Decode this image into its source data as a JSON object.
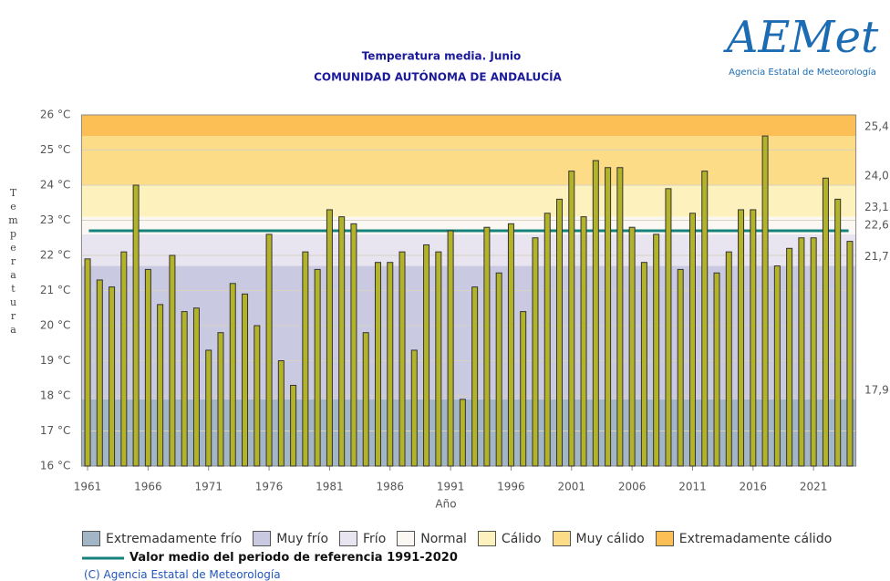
{
  "chart_data": {
    "type": "bar",
    "title": "Temperatura media. Junio",
    "subtitle": "COMUNIDAD AUTÓNOMA DE ANDALUCÍA",
    "x_label": "Año",
    "y_label": "Temperatura",
    "x": [
      1961,
      1962,
      1963,
      1964,
      1965,
      1966,
      1967,
      1968,
      1969,
      1970,
      1971,
      1972,
      1973,
      1974,
      1975,
      1976,
      1977,
      1978,
      1979,
      1980,
      1981,
      1982,
      1983,
      1984,
      1985,
      1986,
      1987,
      1988,
      1989,
      1990,
      1991,
      1992,
      1993,
      1994,
      1995,
      1996,
      1997,
      1998,
      1999,
      2000,
      2001,
      2002,
      2003,
      2004,
      2005,
      2006,
      2007,
      2008,
      2009,
      2010,
      2011,
      2012,
      2013,
      2014,
      2015,
      2016,
      2017,
      2018,
      2019,
      2020,
      2021,
      2022,
      2023,
      2024
    ],
    "values": [
      21.9,
      21.3,
      21.1,
      22.1,
      24.0,
      21.6,
      20.6,
      22.0,
      20.4,
      20.5,
      19.3,
      19.8,
      21.2,
      20.9,
      20.0,
      22.6,
      19.0,
      18.3,
      22.1,
      21.6,
      23.3,
      23.1,
      22.9,
      19.8,
      21.8,
      21.8,
      22.1,
      19.3,
      22.3,
      22.1,
      22.7,
      17.9,
      21.1,
      22.8,
      21.5,
      22.9,
      20.4,
      22.5,
      23.2,
      23.6,
      24.4,
      23.1,
      24.7,
      24.5,
      24.5,
      22.8,
      21.8,
      22.6,
      23.9,
      21.6,
      23.2,
      24.4,
      21.5,
      22.1,
      23.3,
      23.3,
      25.4,
      21.7,
      22.2,
      22.5,
      22.5,
      24.2,
      23.6,
      22.4
    ],
    "color": "#b3b32a",
    "xlim": [
      1960.5,
      2024.5
    ],
    "xticks": [
      1961,
      1966,
      1971,
      1976,
      1981,
      1986,
      1991,
      1996,
      2001,
      2006,
      2011,
      2016,
      2021
    ],
    "ylim": [
      16,
      26
    ],
    "yticks": [
      {
        "value": 16,
        "label": "16 °C"
      },
      {
        "value": 17,
        "label": "17 °C"
      },
      {
        "value": 18,
        "label": "18 °C"
      },
      {
        "value": 19,
        "label": "19 °C"
      },
      {
        "value": 20,
        "label": "20 °C"
      },
      {
        "value": 21,
        "label": "21 °C"
      },
      {
        "value": 22,
        "label": "22 °C"
      },
      {
        "value": 23,
        "label": "23 °C"
      },
      {
        "value": 24,
        "label": "24 °C"
      },
      {
        "value": 25,
        "label": "25 °C"
      },
      {
        "value": 26,
        "label": "26 °C"
      }
    ],
    "y2lim": [
      16,
      26
    ],
    "y2ticks": [
      {
        "value": 17.9,
        "label": "17,9"
      },
      {
        "value": 21.7,
        "label": "21,7"
      },
      {
        "value": 22.6,
        "label": "22,6"
      },
      {
        "value": 23.1,
        "label": "23,1"
      },
      {
        "value": 24.0,
        "label": "24,0"
      },
      {
        "value": 25.4,
        "label": "25,4"
      }
    ],
    "grid": true,
    "bands": [
      {
        "name": "Extremadamente frío",
        "color": "#a3b6c8"
      },
      {
        "name": "Muy frío",
        "color": "#c9c9e2"
      },
      {
        "name": "Frío",
        "color": "#e8e4f0"
      },
      {
        "name": "Normal",
        "color": "#fbf8f3"
      },
      {
        "name": "Cálido",
        "color": "#fdf2bd"
      },
      {
        "name": "Muy cálido",
        "color": "#fcdc86"
      },
      {
        "name": "Extremadamente cálido",
        "color": "#fbbf55"
      }
    ],
    "reference": {
      "name": "Valor medio del periodo de referencia 1991-2020",
      "value": 22.7,
      "color": "#15827c"
    },
    "credit": "(C) Agencia Estatal de Meteorología"
  },
  "logo": {
    "name": "AEMet",
    "subtitle": "Agencia Estatal de Meteorología"
  }
}
